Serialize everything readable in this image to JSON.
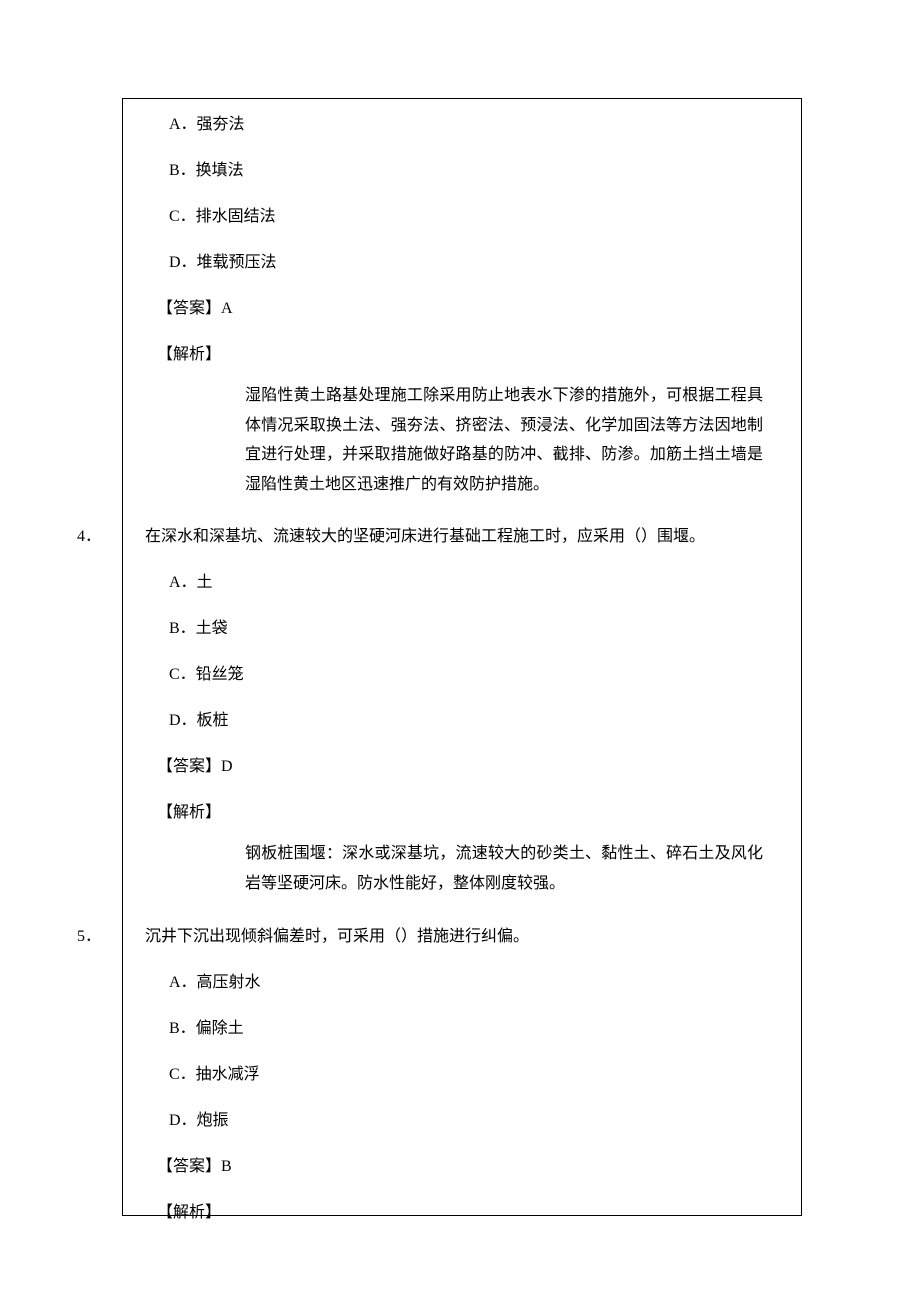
{
  "q3": {
    "options": {
      "A": "A．强夯法",
      "B": "B．换填法",
      "C": "C．排水固结法",
      "D": "D．堆载预压法"
    },
    "answer": "【答案】A",
    "explain_label": "【解析】",
    "explain_body": "湿陷性黄土路基处理施工除采用防止地表水下渗的措施外，可根据工程具体情况采取换土法、强夯法、挤密法、预浸法、化学加固法等方法因地制宜进行处理，并采取措施做好路基的防冲、截排、防渗。加筋土挡土墙是湿陷性黄土地区迅速推广的有效防护措施。"
  },
  "q4": {
    "number": "4．",
    "stem": "在深水和深基坑、流速较大的坚硬河床进行基础工程施工时，应采用（）围堰。",
    "options": {
      "A": "A．土",
      "B": "B．土袋",
      "C": "C．铅丝笼",
      "D": "D．板桩"
    },
    "answer": "【答案】D",
    "explain_label": "【解析】",
    "explain_body": "钢板桩围堰：深水或深基坑，流速较大的砂类土、黏性土、碎石土及风化岩等坚硬河床。防水性能好，整体刚度较强。"
  },
  "q5": {
    "number": "5．",
    "stem": "沉井下沉出现倾斜偏差时，可采用（）措施进行纠偏。",
    "options": {
      "A": "A．高压射水",
      "B": "B．偏除土",
      "C": "C．抽水减浮",
      "D": "D．炮振"
    },
    "answer": "【答案】B",
    "explain_label": "【解析】"
  }
}
